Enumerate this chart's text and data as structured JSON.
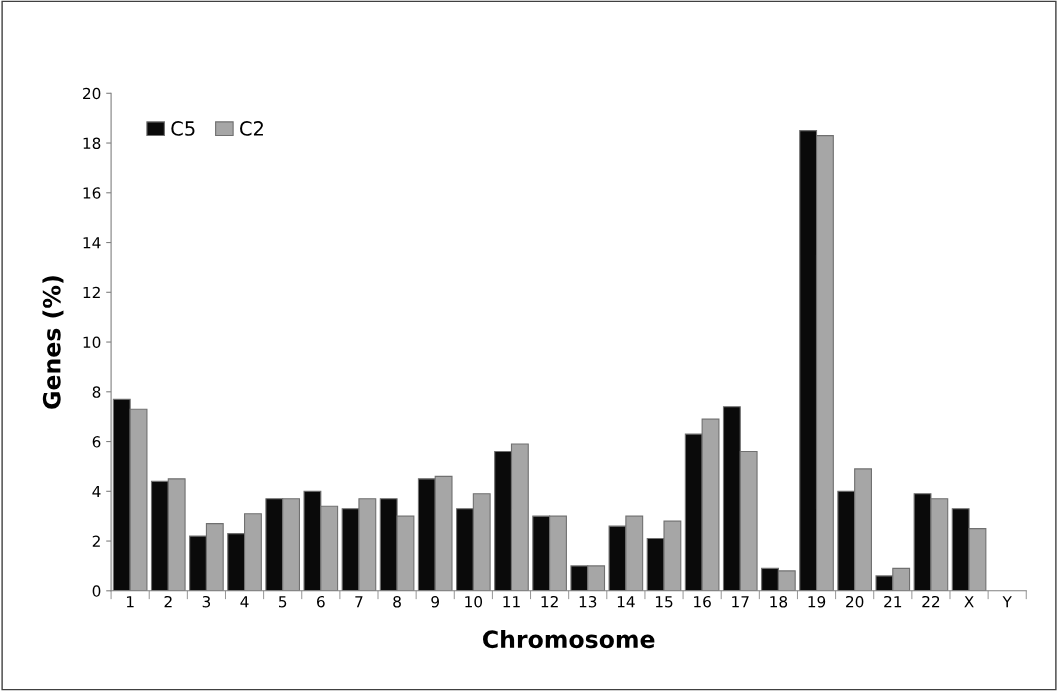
{
  "chart_data": {
    "type": "bar",
    "xlabel": "Chromosome",
    "ylabel": "Genes (%)",
    "categories": [
      "1",
      "2",
      "3",
      "4",
      "5",
      "6",
      "7",
      "8",
      "9",
      "10",
      "11",
      "12",
      "13",
      "14",
      "15",
      "16",
      "17",
      "18",
      "19",
      "20",
      "21",
      "22",
      "X",
      "Y"
    ],
    "series": [
      {
        "name": "C5",
        "color": "#0a0a0a",
        "values": [
          7.7,
          4.4,
          2.2,
          2.3,
          3.7,
          4.0,
          3.3,
          3.7,
          4.5,
          3.3,
          5.6,
          3.0,
          1.0,
          2.6,
          2.1,
          6.3,
          7.4,
          0.9,
          18.5,
          4.0,
          0.6,
          3.9,
          3.3,
          null
        ]
      },
      {
        "name": "C2",
        "color": "#a6a6a6",
        "values": [
          7.3,
          4.5,
          2.7,
          3.1,
          3.7,
          3.4,
          3.7,
          3.0,
          4.6,
          3.9,
          5.9,
          3.0,
          1.0,
          3.0,
          2.8,
          6.9,
          5.6,
          0.8,
          18.3,
          4.9,
          0.9,
          3.7,
          2.5,
          null
        ]
      }
    ],
    "ylim": [
      0,
      20
    ],
    "yticks": [
      0,
      2,
      4,
      6,
      8,
      10,
      12,
      14,
      16,
      18,
      20
    ],
    "grid": false,
    "legend": "top left"
  }
}
